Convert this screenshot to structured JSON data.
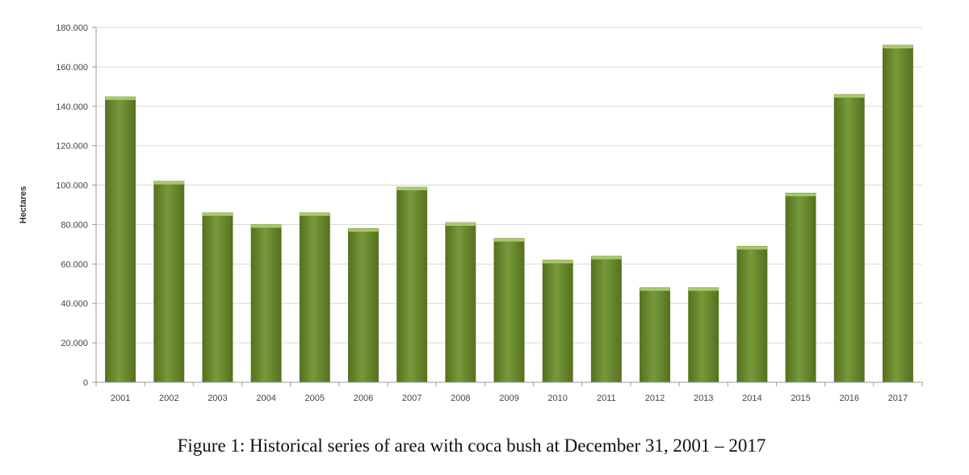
{
  "chart_data": {
    "type": "bar",
    "title": "",
    "xlabel": "",
    "ylabel": "Hectares",
    "ylim": [
      0,
      180000
    ],
    "y_ticks": [
      0,
      20000,
      40000,
      60000,
      80000,
      100000,
      120000,
      140000,
      160000,
      180000
    ],
    "y_tick_labels": [
      "0",
      "20.000",
      "40.000",
      "60.000",
      "80.000",
      "100.000",
      "120.000",
      "140.000",
      "160.000",
      "180.000"
    ],
    "grid": true,
    "legend": "none",
    "bar_color": "#77993a",
    "bar_highlight": "#a8c86a",
    "bar_shadow": "#55711f",
    "categories": [
      "2001",
      "2002",
      "2003",
      "2004",
      "2005",
      "2006",
      "2007",
      "2008",
      "2009",
      "2010",
      "2011",
      "2012",
      "2013",
      "2014",
      "2015",
      "2016",
      "2017"
    ],
    "values": [
      144800,
      102000,
      86000,
      80000,
      86000,
      78000,
      99000,
      81000,
      73000,
      62000,
      64000,
      48000,
      48000,
      69000,
      96000,
      146000,
      171000
    ]
  },
  "caption": "Figure 1: Historical series of area with coca bush at December 31, 2001 – 2017"
}
